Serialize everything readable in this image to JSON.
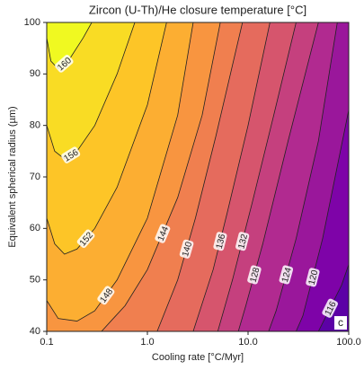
{
  "chart_data": {
    "type": "contour",
    "title": "Zircon (U-Th)/He closure temperature [°C]",
    "xlabel": "Cooling rate [°C/Myr]",
    "ylabel": "Equivalent spherical radius (µm)",
    "panel_label": "c",
    "xscale": "log",
    "xlim": [
      0.1,
      100
    ],
    "xticks": [
      0.1,
      {
        "value": 1,
        "label": "1.0"
      },
      {
        "value": 10,
        "label": "10.0"
      },
      {
        "value": 100,
        "label": "100.0"
      }
    ],
    "ylim": [
      40,
      100
    ],
    "yticks": [
      40,
      50,
      60,
      70,
      80,
      90,
      100
    ],
    "top_color": "#f0f921",
    "line_color": "#222222",
    "contours": [
      {
        "level": 160,
        "color": "#f9dc24",
        "x": [
          0.1,
          0.11,
          0.13,
          0.17,
          0.23,
          0.28
        ],
        "y": [
          97,
          92.5,
          91,
          93,
          97,
          100
        ]
      },
      {
        "level": 156,
        "color": "#fdc527",
        "x": [
          0.1,
          0.12,
          0.15,
          0.2,
          0.3,
          0.5,
          0.75
        ],
        "y": [
          80,
          75,
          73.5,
          75,
          80,
          90,
          100
        ]
      },
      {
        "level": 152,
        "color": "#fcae32",
        "x": [
          0.1,
          0.12,
          0.15,
          0.2,
          0.3,
          0.5,
          1,
          1.55
        ],
        "y": [
          62,
          57,
          55,
          56,
          60,
          68,
          84,
          100
        ]
      },
      {
        "level": 148,
        "color": "#f89540",
        "x": [
          0.1,
          0.13,
          0.2,
          0.3,
          0.5,
          1,
          2,
          2.85
        ],
        "y": [
          46,
          42.5,
          42,
          44,
          50,
          62,
          82,
          100
        ]
      },
      {
        "level": 144,
        "color": "#f07f4f",
        "x": [
          0.35,
          0.6,
          1,
          2,
          3.5,
          5.3
        ],
        "y": [
          40,
          45,
          52,
          66,
          82,
          100
        ]
      },
      {
        "level": 140,
        "color": "#e56b5d",
        "x": [
          1.25,
          2,
          3,
          4.8,
          8.8
        ],
        "y": [
          40,
          50,
          62,
          78,
          100
        ]
      },
      {
        "level": 136,
        "color": "#d6556d",
        "x": [
          2.85,
          4.5,
          6.2,
          10,
          16.5
        ],
        "y": [
          40,
          52,
          63,
          80,
          100
        ]
      },
      {
        "level": 132,
        "color": "#c5407e",
        "x": [
          5,
          7,
          11,
          18,
          30
        ],
        "y": [
          40,
          50,
          65,
          82,
          100
        ]
      },
      {
        "level": 128,
        "color": "#b12a90",
        "x": [
          8,
          9.5,
          14,
          25,
          50
        ],
        "y": [
          40,
          45,
          57,
          77,
          100
        ]
      },
      {
        "level": 124,
        "color": "#9a179b",
        "x": [
          16,
          19,
          30,
          50,
          77
        ],
        "y": [
          40,
          44,
          58,
          77,
          100
        ]
      },
      {
        "level": 120,
        "color": "#7e03a8",
        "x": [
          30,
          35,
          55,
          100
        ],
        "y": [
          40,
          43,
          58,
          83
        ]
      },
      {
        "level": 116,
        "color": "#5c01a6",
        "x": [
          50,
          85,
          100
        ],
        "y": [
          40,
          49,
          53
        ]
      }
    ]
  }
}
